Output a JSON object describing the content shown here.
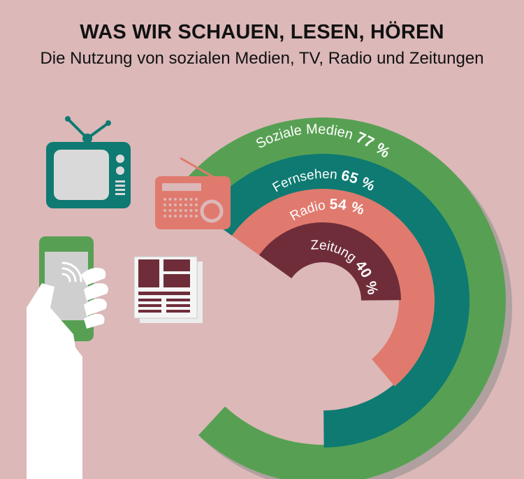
{
  "header": {
    "title": "WAS WIR SCHAUEN, LESEN, HÖREN",
    "subtitle": "Die Nutzung von sozialen Medien, TV, Radio und Zeitungen"
  },
  "colors": {
    "background": "#dcb8b8",
    "social": "#57a053",
    "tv": "#0e7a72",
    "radio": "#e07a6e",
    "newspaper": "#6f2d3a",
    "shadow": "#b0a0a0"
  },
  "icons": [
    "tv-icon",
    "radio-icon",
    "smartphone-in-hand-icon",
    "newspaper-icon"
  ],
  "chart_data": {
    "type": "radial-bar",
    "unit": "%",
    "series": [
      {
        "name": "Soziale Medien",
        "value": 77,
        "value_label": "77 %"
      },
      {
        "name": "Fernsehen",
        "value": 65,
        "value_label": "65 %"
      },
      {
        "name": "Radio",
        "value": 54,
        "value_label": "54 %"
      },
      {
        "name": "Zeitung",
        "value": 40,
        "value_label": "40 %"
      }
    ]
  }
}
